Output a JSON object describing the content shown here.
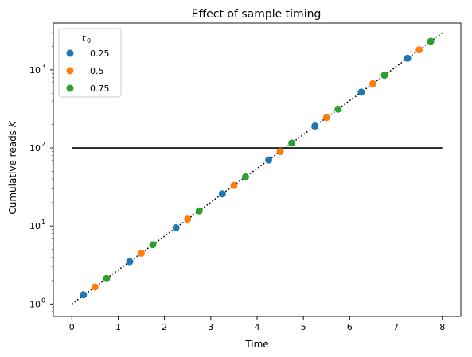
{
  "chart_data": {
    "type": "scatter",
    "title": "Effect of sample timing",
    "xlabel": "Time",
    "ylabel_main": "Cumulative reads",
    "ylabel_var": "K",
    "xlim": [
      -0.4,
      8.4
    ],
    "ylim_log10": [
      -0.16,
      3.6
    ],
    "yscale": "log",
    "grid": false,
    "x_ticks": [
      0,
      1,
      2,
      3,
      4,
      5,
      6,
      7,
      8
    ],
    "y_ticks": [
      {
        "exp": 0,
        "base": "10",
        "power": "0"
      },
      {
        "exp": 1,
        "base": "10",
        "power": "1"
      },
      {
        "exp": 2,
        "base": "10",
        "power": "2"
      },
      {
        "exp": 3,
        "base": "10",
        "power": "3"
      }
    ],
    "legend": {
      "title_var": "t",
      "title_sub": "0",
      "placement": "top-left"
    },
    "trend_line": {
      "style": "dotted",
      "color": "#000000",
      "x": [
        0,
        8
      ],
      "y": [
        1,
        2981
      ]
    },
    "threshold_line": {
      "style": "solid",
      "color": "#000000",
      "y": 100,
      "x": [
        0,
        8
      ]
    },
    "series": [
      {
        "name": "0.25",
        "color": "#1f77b4",
        "x": [
          0.25,
          1.25,
          2.25,
          3.25,
          4.25,
          5.25,
          6.25,
          7.25
        ],
        "y": [
          1.31,
          3.49,
          9.49,
          25.8,
          70.1,
          190.6,
          518,
          1408
        ]
      },
      {
        "name": "0.5",
        "color": "#ff7f0e",
        "x": [
          0.5,
          1.5,
          2.5,
          3.5,
          4.5,
          5.5,
          6.5,
          7.5
        ],
        "y": [
          1.65,
          4.48,
          12.2,
          33.1,
          90.0,
          245,
          665,
          1808
        ]
      },
      {
        "name": "0.75",
        "color": "#2ca02c",
        "x": [
          0.75,
          1.75,
          2.75,
          3.75,
          4.75,
          5.75,
          6.75,
          7.75
        ],
        "y": [
          2.12,
          5.75,
          15.6,
          42.5,
          115.6,
          314,
          854,
          2322
        ]
      }
    ]
  }
}
